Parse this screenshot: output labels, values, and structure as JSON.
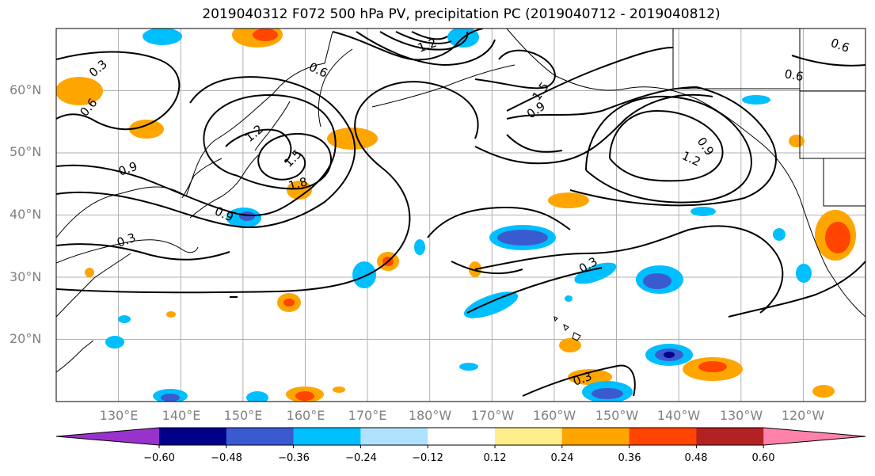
{
  "title": "2019040312 F072 500 hPa PV, precipitation PC (2019040712 - 2019040812)",
  "map": {
    "lon_ticks": [
      "130°E",
      "140°E",
      "150°E",
      "160°E",
      "170°E",
      "180°W",
      "170°W",
      "160°W",
      "150°W",
      "140°W",
      "130°W",
      "120°W"
    ],
    "lat_ticks": [
      "60°N",
      "50°N",
      "40°N",
      "30°N",
      "20°N"
    ],
    "extent": {
      "lon_min": 120,
      "lon_max": 250,
      "lat_min": 10,
      "lat_max": 70
    },
    "gridlines": true,
    "contour_labels": [
      "0.3",
      "0.6",
      "0.9",
      "1.2",
      "1.5",
      "1.8",
      "0.3",
      "0.9",
      "0.6",
      "0.9",
      "1.2",
      "1.5",
      "0.9",
      "1.2",
      "0.3",
      "0.3",
      "0.6",
      "0.6"
    ]
  },
  "colorbar": {
    "ticks": [
      "−0.60",
      "−0.48",
      "−0.36",
      "−0.24",
      "−0.12",
      "0.12",
      "0.24",
      "0.36",
      "0.48",
      "0.60"
    ],
    "colors": [
      "#9932cc",
      "#00008b",
      "#3a5bd0",
      "#00bfff",
      "#b0e2ff",
      "#ffffff",
      "#ffec8b",
      "#ffa500",
      "#ff4500",
      "#b22222",
      "#ff82ab"
    ],
    "extend": "both"
  }
}
